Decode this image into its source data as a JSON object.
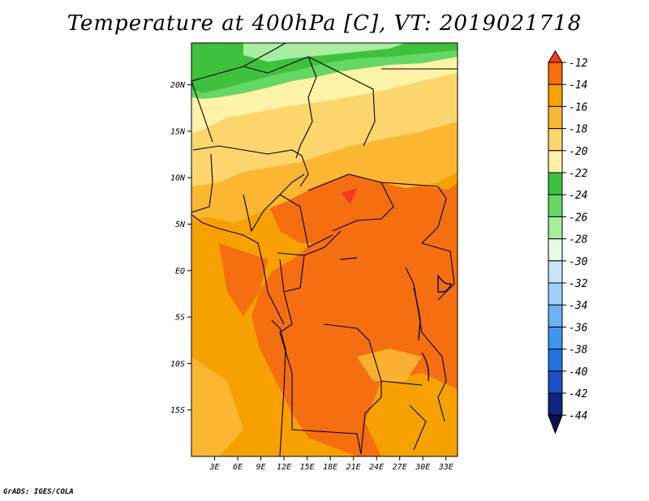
{
  "title": "Temperature at 400hPa [C], VT: 2019021718",
  "credit": "GrADS: IGES/COLA",
  "map": {
    "lon_range": [
      0,
      34.5
    ],
    "lat_range": [
      -20,
      24.5
    ],
    "lon_ticks": [
      "3E",
      "6E",
      "9E",
      "12E",
      "15E",
      "18E",
      "21E",
      "24E",
      "27E",
      "30E",
      "33E"
    ],
    "lat_ticks": [
      "20N",
      "15N",
      "10N",
      "5N",
      "EQ",
      "5S",
      "10S",
      "15S"
    ],
    "field": "temperature_400hPa"
  },
  "colorbar": {
    "levels": [
      "-12",
      "-14",
      "-16",
      "-18",
      "-20",
      "-22",
      "-24",
      "-26",
      "-28",
      "-30",
      "-32",
      "-34",
      "-36",
      "-38",
      "-40",
      "-42",
      "-44"
    ],
    "colors": [
      "#f03d1e",
      "#f56e10",
      "#f7a100",
      "#fbb732",
      "#fdd56d",
      "#fef3a7",
      "#3ec23e",
      "#64d764",
      "#a7ef9e",
      "#e6fbe6",
      "#c8e6fb",
      "#9fd0f9",
      "#6ab3f4",
      "#3c97ed",
      "#2272df",
      "#1b4fc2",
      "#0e2580",
      "#101050"
    ]
  }
}
